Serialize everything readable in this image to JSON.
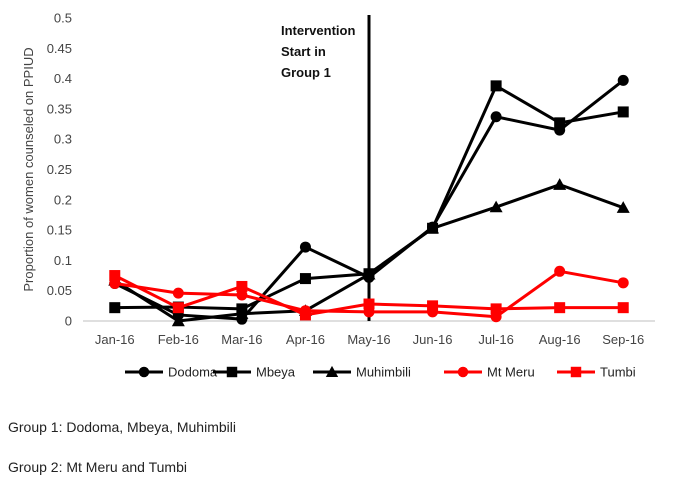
{
  "chart_data": {
    "type": "line",
    "title": "",
    "xlabel": "",
    "ylabel": "Proportion of women counseled on PPIUD",
    "ylim": [
      0,
      0.5
    ],
    "yticks": [
      "0",
      "0.05",
      "0.1",
      "0.15",
      "0.2",
      "0.25",
      "0.3",
      "0.35",
      "0.4",
      "0.45",
      "0.5"
    ],
    "categories": [
      "Jan-16",
      "Feb-16",
      "Mar-16",
      "Apr-16",
      "May-16",
      "Jun-16",
      "Jul-16",
      "Aug-16",
      "Sep-16"
    ],
    "grid": false,
    "legend_position": "bottom",
    "annotation": {
      "lines": [
        "Intervention",
        "Start in",
        "Group 1"
      ],
      "category": "May-16"
    },
    "series": [
      {
        "name": "Dodoma",
        "color": "#000000",
        "marker": "circle",
        "values": [
          0.062,
          0.01,
          0.003,
          0.122,
          0.072,
          0.155,
          0.337,
          0.315,
          0.397
        ]
      },
      {
        "name": "Mbeya",
        "color": "#000000",
        "marker": "square",
        "values": [
          0.022,
          0.023,
          0.02,
          0.07,
          0.078,
          0.153,
          0.388,
          0.327,
          0.345
        ]
      },
      {
        "name": "Muhimbili",
        "color": "#000000",
        "marker": "triangle",
        "values": [
          0.067,
          0.0,
          0.012,
          0.017,
          0.077,
          0.153,
          0.188,
          0.225,
          0.187
        ]
      },
      {
        "name": "Mt Meru",
        "color": "#ff0000",
        "marker": "circle",
        "values": [
          0.062,
          0.046,
          0.043,
          0.017,
          0.015,
          0.015,
          0.007,
          0.082,
          0.063
        ]
      },
      {
        "name": "Tumbi",
        "color": "#ff0000",
        "marker": "square",
        "values": [
          0.075,
          0.022,
          0.057,
          0.01,
          0.028,
          0.025,
          0.02,
          0.022,
          0.022
        ]
      }
    ]
  },
  "notes": {
    "group1": "Group 1: Dodoma, Mbeya, Muhimbili",
    "group2": "Group 2: Mt Meru and Tumbi"
  }
}
